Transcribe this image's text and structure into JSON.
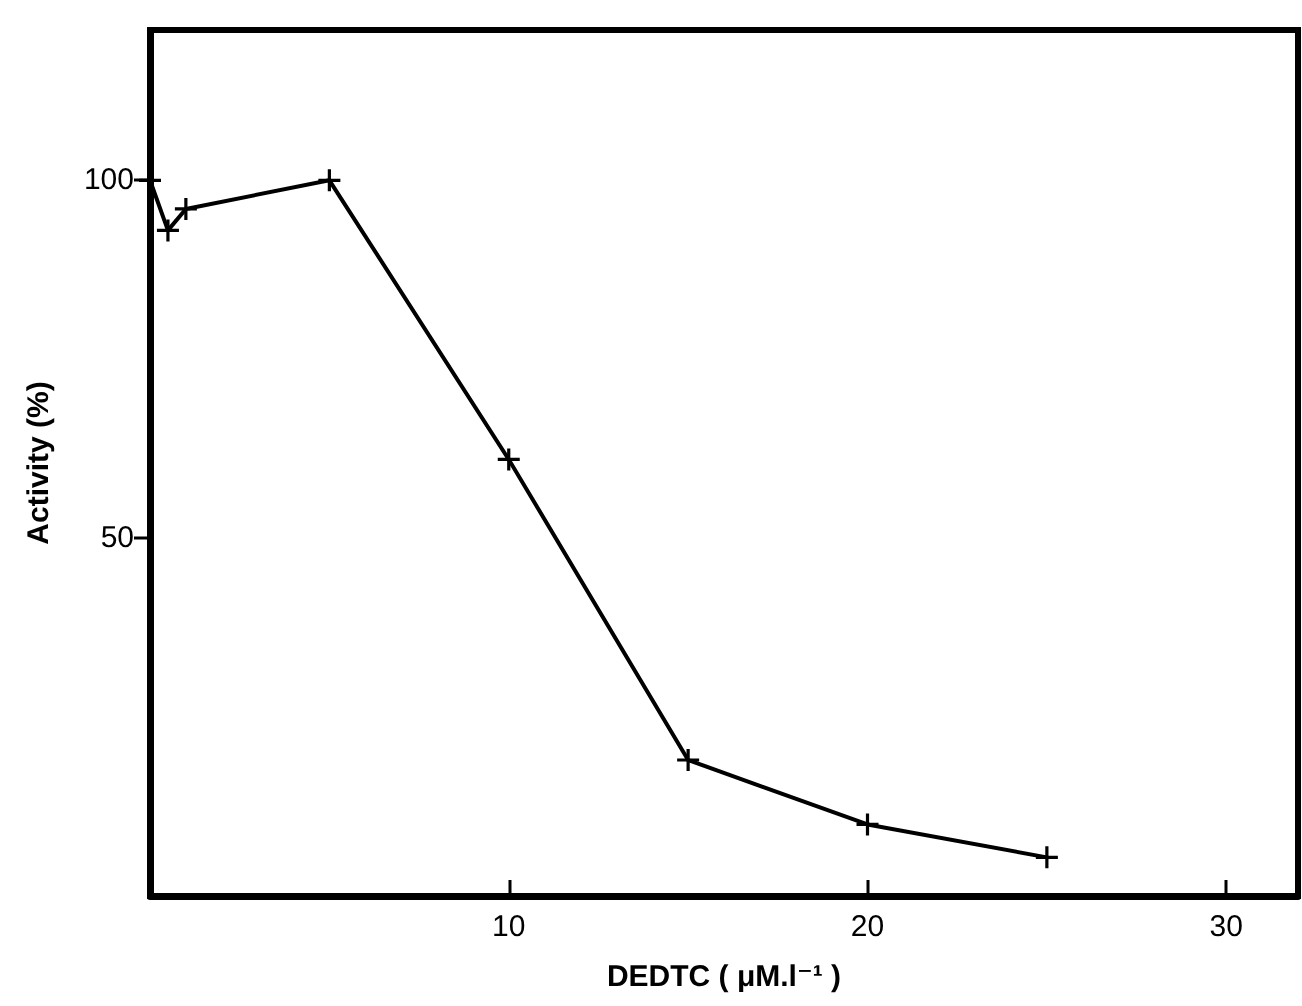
{
  "chart_data": {
    "type": "line",
    "xlabel": "DEDTC ( μM.l⁻¹ )",
    "ylabel": "Activity (%)",
    "x": [
      0,
      0.5,
      1,
      5,
      10,
      15,
      20,
      25
    ],
    "series": [
      {
        "color": "#000000",
        "values": [
          100,
          93,
          96,
          100,
          61,
          19,
          10,
          5.4
        ]
      }
    ],
    "xlim": [
      0,
      32
    ],
    "ylim": [
      0,
      121
    ],
    "xticks": [
      10,
      20,
      30
    ],
    "yticks": [
      50,
      100
    ],
    "grid": false,
    "marker": "cross",
    "line_style": "solid"
  }
}
